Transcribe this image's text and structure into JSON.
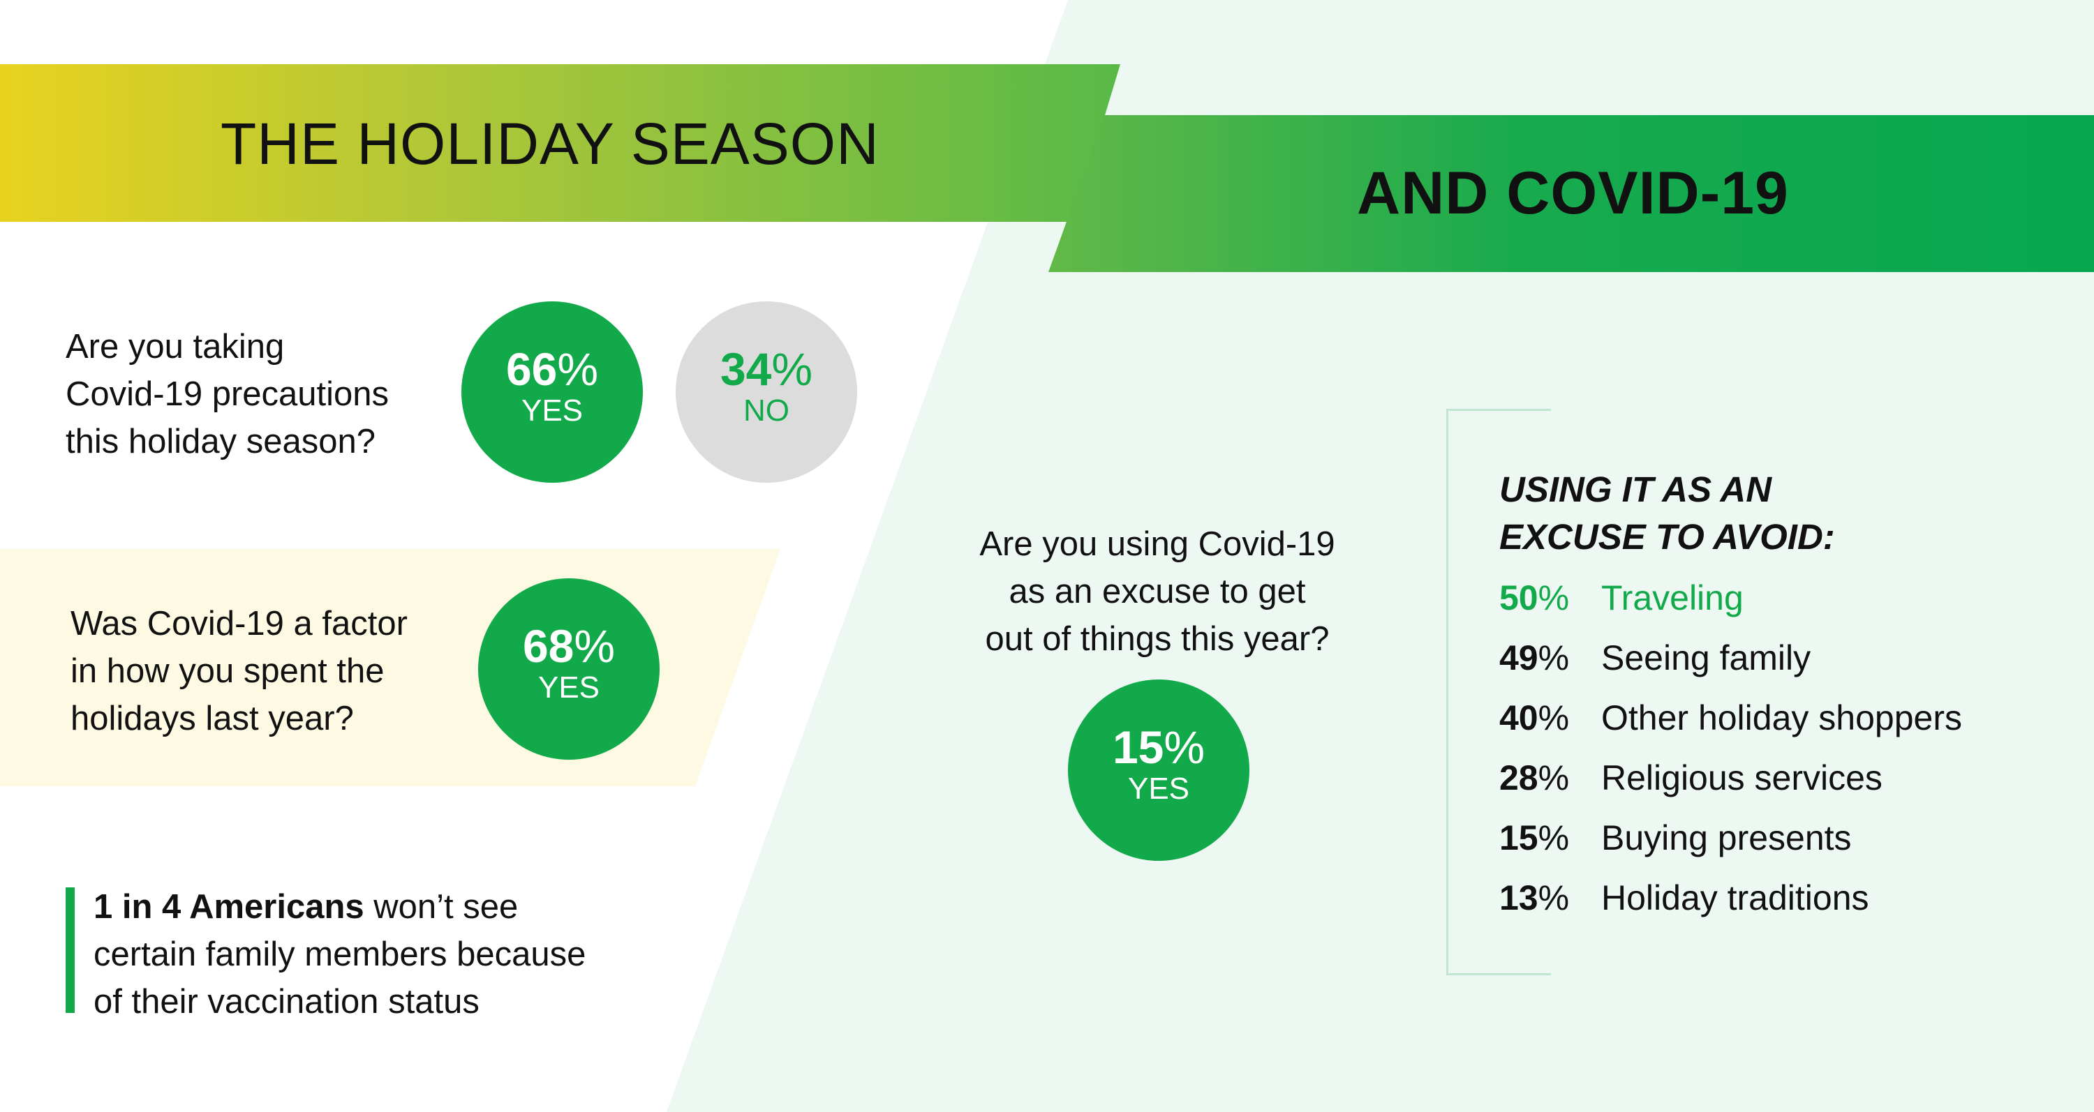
{
  "header": {
    "title_line1": "THE HOLIDAY SEASON",
    "title_line2": "AND COVID-19"
  },
  "colors": {
    "accent_green": "#12a94a",
    "banner_yellow": "#e8d21f",
    "banner_green": "#0aa84f",
    "light_mint_bg": "#eef8f2",
    "light_yellow_band": "#fdf9e3",
    "no_circle_gray": "#dcdcdc"
  },
  "questions": [
    {
      "text_lines": [
        "Are you taking",
        "Covid-19 precautions",
        "this holiday season?"
      ],
      "answers": [
        {
          "value": "66",
          "symbol": "%",
          "label": "YES",
          "style": "green"
        },
        {
          "value": "34",
          "symbol": "%",
          "label": "NO",
          "style": "gray"
        }
      ]
    },
    {
      "text_lines": [
        "Was Covid-19 a factor",
        "in how you spent the",
        "holidays last year?"
      ],
      "answers": [
        {
          "value": "68",
          "symbol": "%",
          "label": "YES",
          "style": "green"
        }
      ]
    },
    {
      "text_lines": [
        "Are you using Covid-19",
        "as an excuse to get",
        "out of things this year?"
      ],
      "answers": [
        {
          "value": "15",
          "symbol": "%",
          "label": "YES",
          "style": "green"
        }
      ]
    }
  ],
  "note": {
    "bold": "1 in 4 Americans",
    "line1_rest": " won’t see",
    "line2": "certain family members because",
    "line3": "of their vaccination status"
  },
  "excuses": {
    "heading_line1": "USING IT AS AN",
    "heading_line2": "EXCUSE TO AVOID:",
    "items": [
      {
        "value": "50",
        "symbol": "%",
        "label": "Traveling",
        "highlight": true
      },
      {
        "value": "49",
        "symbol": "%",
        "label": "Seeing family",
        "highlight": false
      },
      {
        "value": "40",
        "symbol": "%",
        "label": "Other holiday shoppers",
        "highlight": false
      },
      {
        "value": "28",
        "symbol": "%",
        "label": "Religious services",
        "highlight": false
      },
      {
        "value": "15",
        "symbol": "%",
        "label": "Buying presents",
        "highlight": false
      },
      {
        "value": "13",
        "symbol": "%",
        "label": "Holiday traditions",
        "highlight": false
      }
    ]
  }
}
